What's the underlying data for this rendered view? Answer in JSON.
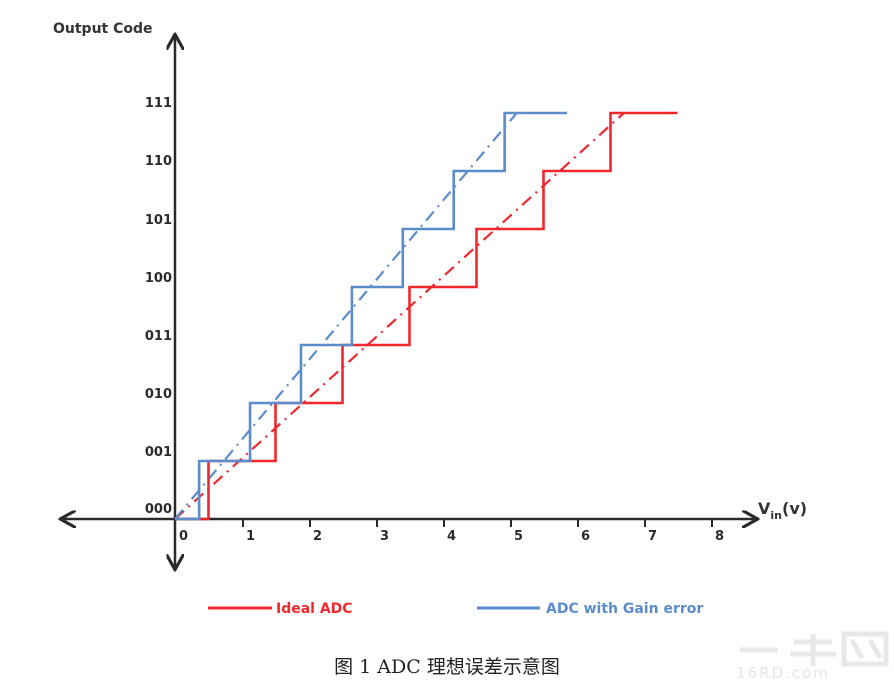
{
  "chart_data": {
    "type": "line",
    "title": "",
    "xlabel": "V_in(v)",
    "ylabel": "Output Code",
    "x_ticks": [
      "0",
      "1",
      "2",
      "3",
      "4",
      "5",
      "6",
      "7",
      "8"
    ],
    "y_ticks": [
      "000",
      "001",
      "010",
      "011",
      "100",
      "101",
      "110",
      "111"
    ],
    "xlim": [
      0,
      8
    ],
    "ylim": [
      0,
      7
    ],
    "grid": false,
    "legend_position": "bottom",
    "series": [
      {
        "name": "Ideal ADC",
        "color": "#f0282d",
        "style": "step",
        "transitions_v": [
          0.5,
          1.5,
          2.5,
          3.5,
          4.5,
          5.5,
          6.5
        ],
        "x": [
          0,
          0.5,
          0.5,
          1.5,
          1.5,
          2.5,
          2.5,
          3.5,
          3.5,
          4.5,
          4.5,
          5.5,
          5.5,
          6.5,
          6.5,
          7.5
        ],
        "y": [
          0,
          0,
          1,
          1,
          2,
          2,
          3,
          3,
          4,
          4,
          5,
          5,
          6,
          6,
          7,
          7
        ],
        "ideal_line": {
          "style": "dash-dot",
          "x": [
            0,
            6.7
          ],
          "y": [
            0,
            7
          ]
        }
      },
      {
        "name": "ADC with Gain error",
        "color": "#5b8ccc",
        "style": "step",
        "transitions_v": [
          0.36,
          1.12,
          1.88,
          2.64,
          3.4,
          4.16,
          4.92
        ],
        "x": [
          0,
          0.36,
          0.36,
          1.12,
          1.12,
          1.88,
          1.88,
          2.64,
          2.64,
          3.4,
          3.4,
          4.16,
          4.16,
          4.92,
          4.92,
          5.85
        ],
        "y": [
          0,
          0,
          1,
          1,
          2,
          2,
          3,
          3,
          4,
          4,
          5,
          5,
          6,
          6,
          7,
          7
        ],
        "gain_line": {
          "style": "dash-dot",
          "x": [
            0,
            5.1
          ],
          "y": [
            0,
            7
          ]
        }
      }
    ],
    "caption": "图 1  ADC 理想误差示意图"
  },
  "axes": {
    "y_title": "Output Code",
    "x_title_main": "V",
    "x_title_sub": "in",
    "x_title_unit": "(v)"
  },
  "legend": {
    "items": [
      {
        "label": "Ideal ADC",
        "color": "#f0282d"
      },
      {
        "label": "ADC with Gain error",
        "color": "#5b8ccc"
      }
    ]
  },
  "caption": "图 1  ADC 理想误差示意图",
  "watermark": {
    "mark": "一牛网",
    "text": "16RD.com"
  }
}
